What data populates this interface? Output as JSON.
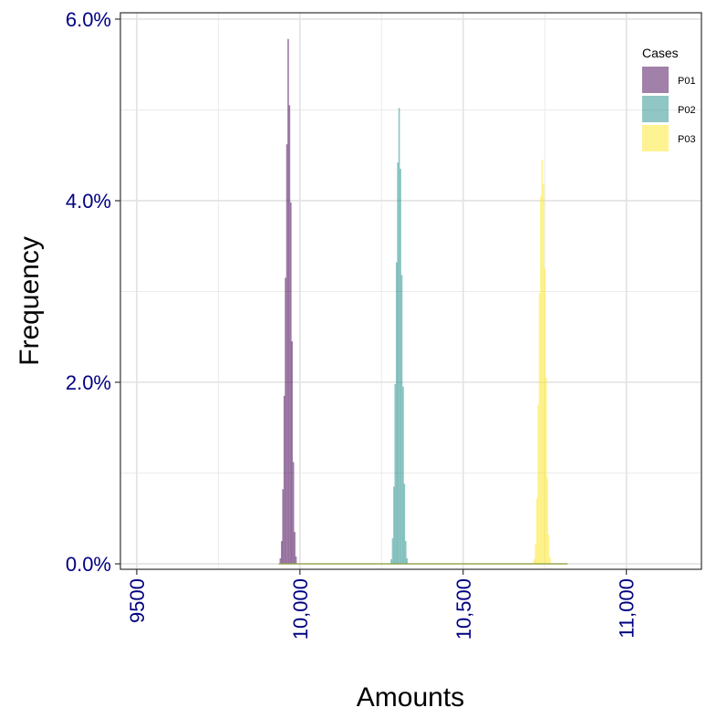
{
  "chart_data": {
    "type": "histogram",
    "title": "",
    "xlabel": "Amounts",
    "ylabel": "Frequency",
    "xlim": [
      9450,
      11230
    ],
    "ylim": [
      -0.0006,
      0.0607
    ],
    "x_ticks": [
      9500,
      10000,
      10500,
      11000
    ],
    "x_tick_labels": [
      "9500",
      "10,000",
      "10,500",
      "11,000"
    ],
    "y_ticks": [
      0,
      0.02,
      0.04,
      0.06
    ],
    "y_tick_labels": [
      "0.0%",
      "2.0%",
      "4.0%",
      "6.0%"
    ],
    "grid": true,
    "legend_title": "Cases",
    "legend_position": "top-right",
    "bin_width": 4,
    "baseline": [
      9935,
      10820
    ],
    "series": [
      {
        "name": "P01",
        "color": "#440154",
        "bins": [
          {
            "x": 9940,
            "y": 0.0006
          },
          {
            "x": 9944,
            "y": 0.0025
          },
          {
            "x": 9948,
            "y": 0.0082
          },
          {
            "x": 9952,
            "y": 0.0185
          },
          {
            "x": 9956,
            "y": 0.0315
          },
          {
            "x": 9960,
            "y": 0.0462
          },
          {
            "x": 9964,
            "y": 0.0578
          },
          {
            "x": 9968,
            "y": 0.0505
          },
          {
            "x": 9972,
            "y": 0.0398
          },
          {
            "x": 9976,
            "y": 0.0245
          },
          {
            "x": 9980,
            "y": 0.0112
          },
          {
            "x": 9984,
            "y": 0.0035
          },
          {
            "x": 9988,
            "y": 0.0008
          }
        ]
      },
      {
        "name": "P02",
        "color": "#21908C",
        "bins": [
          {
            "x": 10280,
            "y": 0.0005
          },
          {
            "x": 10284,
            "y": 0.0028
          },
          {
            "x": 10288,
            "y": 0.0085
          },
          {
            "x": 10292,
            "y": 0.0198
          },
          {
            "x": 10296,
            "y": 0.0332
          },
          {
            "x": 10300,
            "y": 0.0442
          },
          {
            "x": 10304,
            "y": 0.0502
          },
          {
            "x": 10308,
            "y": 0.0435
          },
          {
            "x": 10312,
            "y": 0.0318
          },
          {
            "x": 10316,
            "y": 0.0195
          },
          {
            "x": 10320,
            "y": 0.0088
          },
          {
            "x": 10324,
            "y": 0.0025
          },
          {
            "x": 10328,
            "y": 0.0006
          }
        ]
      },
      {
        "name": "P03",
        "color": "#FDE725",
        "bins": [
          {
            "x": 10718,
            "y": 0.0005
          },
          {
            "x": 10722,
            "y": 0.0022
          },
          {
            "x": 10726,
            "y": 0.0072
          },
          {
            "x": 10730,
            "y": 0.0175
          },
          {
            "x": 10734,
            "y": 0.0298
          },
          {
            "x": 10738,
            "y": 0.0405
          },
          {
            "x": 10742,
            "y": 0.0445
          },
          {
            "x": 10746,
            "y": 0.0418
          },
          {
            "x": 10750,
            "y": 0.0325
          },
          {
            "x": 10754,
            "y": 0.0205
          },
          {
            "x": 10758,
            "y": 0.0095
          },
          {
            "x": 10762,
            "y": 0.0032
          },
          {
            "x": 10766,
            "y": 0.0007
          }
        ]
      }
    ]
  }
}
